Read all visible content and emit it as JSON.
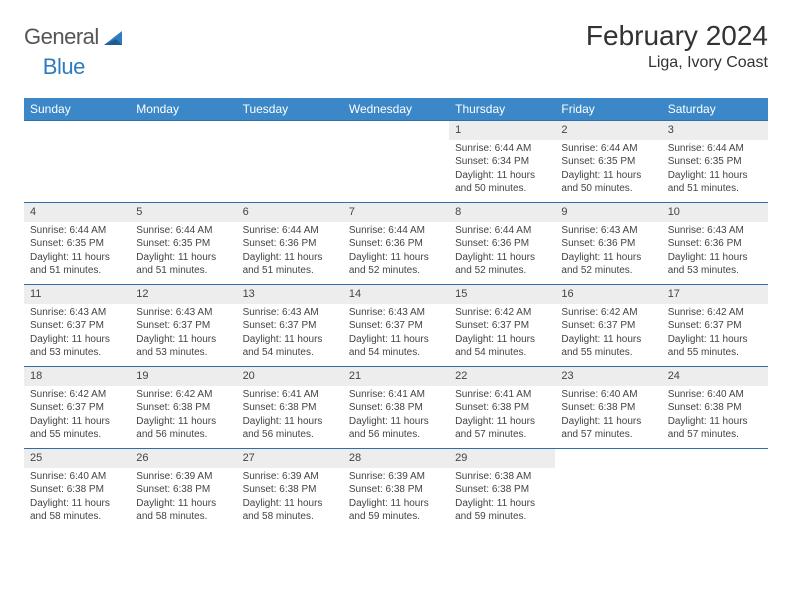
{
  "logo": {
    "general": "General",
    "blue": "Blue"
  },
  "title": {
    "month": "February 2024",
    "location": "Liga, Ivory Coast"
  },
  "colors": {
    "header_bg": "#3b87c8",
    "header_text": "#ffffff",
    "daynum_bg": "#ededed",
    "row_border": "#2f6fa8",
    "logo_gray": "#555555",
    "logo_blue": "#2f7bbf"
  },
  "dayNames": [
    "Sunday",
    "Monday",
    "Tuesday",
    "Wednesday",
    "Thursday",
    "Friday",
    "Saturday"
  ],
  "weeks": [
    [
      null,
      null,
      null,
      null,
      {
        "n": 1,
        "sunrise": "6:44 AM",
        "sunset": "6:34 PM",
        "daylight": "11 hours and 50 minutes."
      },
      {
        "n": 2,
        "sunrise": "6:44 AM",
        "sunset": "6:35 PM",
        "daylight": "11 hours and 50 minutes."
      },
      {
        "n": 3,
        "sunrise": "6:44 AM",
        "sunset": "6:35 PM",
        "daylight": "11 hours and 51 minutes."
      }
    ],
    [
      {
        "n": 4,
        "sunrise": "6:44 AM",
        "sunset": "6:35 PM",
        "daylight": "11 hours and 51 minutes."
      },
      {
        "n": 5,
        "sunrise": "6:44 AM",
        "sunset": "6:35 PM",
        "daylight": "11 hours and 51 minutes."
      },
      {
        "n": 6,
        "sunrise": "6:44 AM",
        "sunset": "6:36 PM",
        "daylight": "11 hours and 51 minutes."
      },
      {
        "n": 7,
        "sunrise": "6:44 AM",
        "sunset": "6:36 PM",
        "daylight": "11 hours and 52 minutes."
      },
      {
        "n": 8,
        "sunrise": "6:44 AM",
        "sunset": "6:36 PM",
        "daylight": "11 hours and 52 minutes."
      },
      {
        "n": 9,
        "sunrise": "6:43 AM",
        "sunset": "6:36 PM",
        "daylight": "11 hours and 52 minutes."
      },
      {
        "n": 10,
        "sunrise": "6:43 AM",
        "sunset": "6:36 PM",
        "daylight": "11 hours and 53 minutes."
      }
    ],
    [
      {
        "n": 11,
        "sunrise": "6:43 AM",
        "sunset": "6:37 PM",
        "daylight": "11 hours and 53 minutes."
      },
      {
        "n": 12,
        "sunrise": "6:43 AM",
        "sunset": "6:37 PM",
        "daylight": "11 hours and 53 minutes."
      },
      {
        "n": 13,
        "sunrise": "6:43 AM",
        "sunset": "6:37 PM",
        "daylight": "11 hours and 54 minutes."
      },
      {
        "n": 14,
        "sunrise": "6:43 AM",
        "sunset": "6:37 PM",
        "daylight": "11 hours and 54 minutes."
      },
      {
        "n": 15,
        "sunrise": "6:42 AM",
        "sunset": "6:37 PM",
        "daylight": "11 hours and 54 minutes."
      },
      {
        "n": 16,
        "sunrise": "6:42 AM",
        "sunset": "6:37 PM",
        "daylight": "11 hours and 55 minutes."
      },
      {
        "n": 17,
        "sunrise": "6:42 AM",
        "sunset": "6:37 PM",
        "daylight": "11 hours and 55 minutes."
      }
    ],
    [
      {
        "n": 18,
        "sunrise": "6:42 AM",
        "sunset": "6:37 PM",
        "daylight": "11 hours and 55 minutes."
      },
      {
        "n": 19,
        "sunrise": "6:42 AM",
        "sunset": "6:38 PM",
        "daylight": "11 hours and 56 minutes."
      },
      {
        "n": 20,
        "sunrise": "6:41 AM",
        "sunset": "6:38 PM",
        "daylight": "11 hours and 56 minutes."
      },
      {
        "n": 21,
        "sunrise": "6:41 AM",
        "sunset": "6:38 PM",
        "daylight": "11 hours and 56 minutes."
      },
      {
        "n": 22,
        "sunrise": "6:41 AM",
        "sunset": "6:38 PM",
        "daylight": "11 hours and 57 minutes."
      },
      {
        "n": 23,
        "sunrise": "6:40 AM",
        "sunset": "6:38 PM",
        "daylight": "11 hours and 57 minutes."
      },
      {
        "n": 24,
        "sunrise": "6:40 AM",
        "sunset": "6:38 PM",
        "daylight": "11 hours and 57 minutes."
      }
    ],
    [
      {
        "n": 25,
        "sunrise": "6:40 AM",
        "sunset": "6:38 PM",
        "daylight": "11 hours and 58 minutes."
      },
      {
        "n": 26,
        "sunrise": "6:39 AM",
        "sunset": "6:38 PM",
        "daylight": "11 hours and 58 minutes."
      },
      {
        "n": 27,
        "sunrise": "6:39 AM",
        "sunset": "6:38 PM",
        "daylight": "11 hours and 58 minutes."
      },
      {
        "n": 28,
        "sunrise": "6:39 AM",
        "sunset": "6:38 PM",
        "daylight": "11 hours and 59 minutes."
      },
      {
        "n": 29,
        "sunrise": "6:38 AM",
        "sunset": "6:38 PM",
        "daylight": "11 hours and 59 minutes."
      },
      null,
      null
    ]
  ],
  "labels": {
    "sunrise": "Sunrise:",
    "sunset": "Sunset:",
    "daylight": "Daylight:"
  }
}
